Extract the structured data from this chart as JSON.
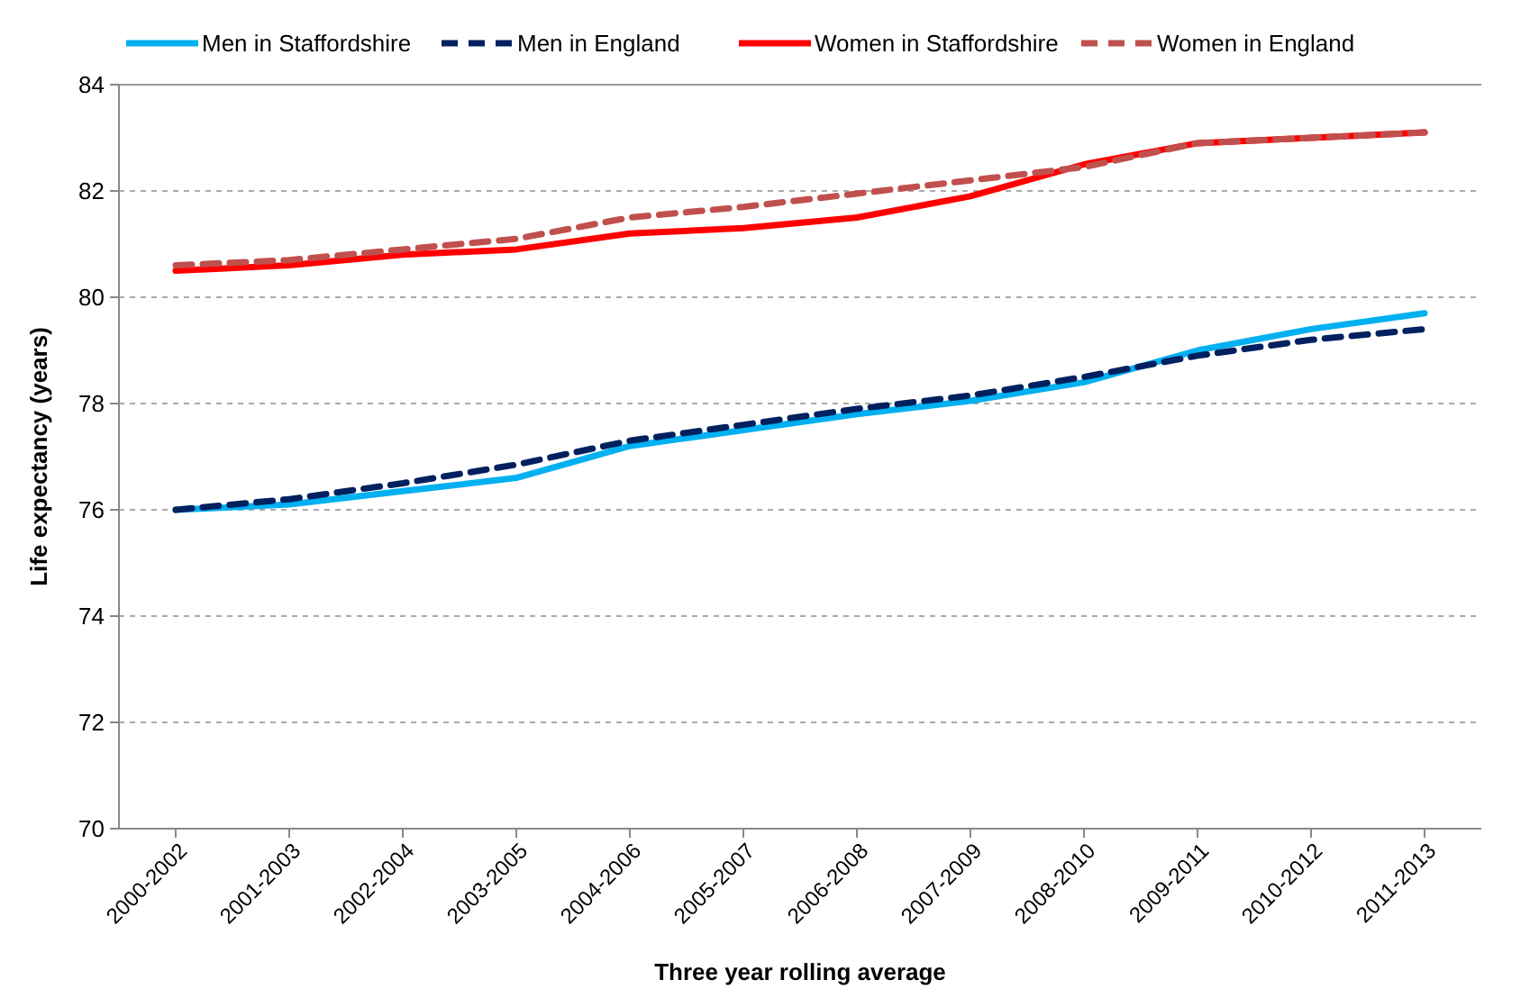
{
  "chart_data": {
    "type": "line",
    "xlabel": "Three year rolling average",
    "ylabel": "Life expectancy (years)",
    "categories": [
      "2000-2002",
      "2001-2003",
      "2002-2004",
      "2003-2005",
      "2004-2006",
      "2005-2007",
      "2006-2008",
      "2007-2009",
      "2008-2010",
      "2009-2011",
      "2010-2012",
      "2011-2013"
    ],
    "series": [
      {
        "name": "Men in Staffordshire",
        "color": "#00b0f0",
        "line_style": "solid",
        "values": [
          76.0,
          76.1,
          76.35,
          76.6,
          77.2,
          77.5,
          77.8,
          78.05,
          78.4,
          79.0,
          79.4,
          79.7
        ]
      },
      {
        "name": "Men in England",
        "color": "#002060",
        "line_style": "dashed",
        "values": [
          76.0,
          76.2,
          76.5,
          76.85,
          77.3,
          77.6,
          77.9,
          78.15,
          78.5,
          78.9,
          79.2,
          79.4
        ]
      },
      {
        "name": "Women in Staffordshire",
        "color": "#ff0000",
        "line_style": "solid",
        "values": [
          80.5,
          80.6,
          80.8,
          80.9,
          81.2,
          81.3,
          81.5,
          81.9,
          82.5,
          82.9,
          83.0,
          83.1
        ]
      },
      {
        "name": "Women in England",
        "color": "#c0504d",
        "line_style": "dashed",
        "values": [
          80.6,
          80.7,
          80.9,
          81.1,
          81.5,
          81.7,
          81.95,
          82.2,
          82.45,
          82.9,
          83.0,
          83.1
        ]
      }
    ],
    "ylim": [
      70,
      84
    ],
    "yticks": [
      70,
      72,
      74,
      76,
      78,
      80,
      82,
      84
    ],
    "grid": "y",
    "legend": "top",
    "marker": "none"
  }
}
